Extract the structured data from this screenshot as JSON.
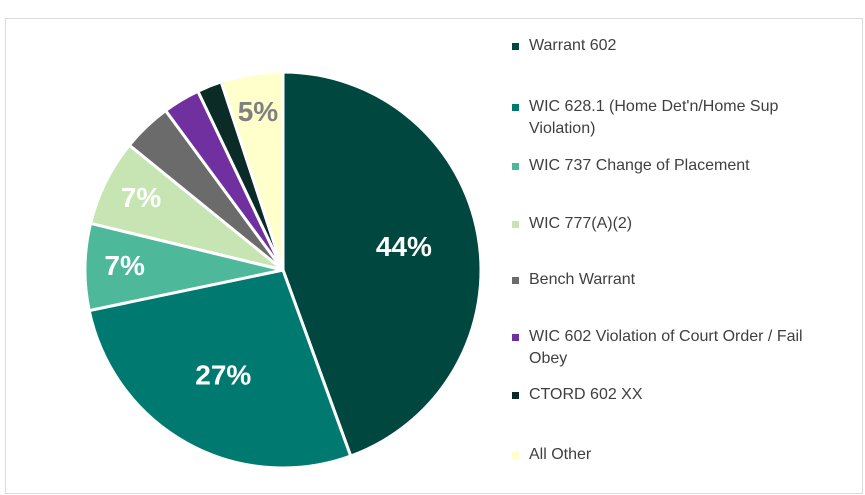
{
  "chart_data": {
    "type": "pie",
    "categories": [
      "Warrant 602",
      "WIC 628.1 (Home Det'n/Home Sup Violation)",
      "WIC 737 Change of Placement",
      "WIC 777(A)(2)",
      "Bench Warrant",
      "WIC 602 Violation of Court Order / Fail Obey",
      "CTORD 602 XX",
      "All Other"
    ],
    "values": [
      44,
      27,
      7,
      7,
      4,
      3,
      2,
      5
    ],
    "value_labels": [
      "44%",
      "27%",
      "7%",
      "7%",
      null,
      null,
      null,
      "5%"
    ],
    "colors": [
      "#00483f",
      "#007a70",
      "#4db89a",
      "#c6e5b3",
      "#6b6b6b",
      "#7030a0",
      "#0b2b27",
      "#ffffcc"
    ],
    "legend": "right"
  }
}
